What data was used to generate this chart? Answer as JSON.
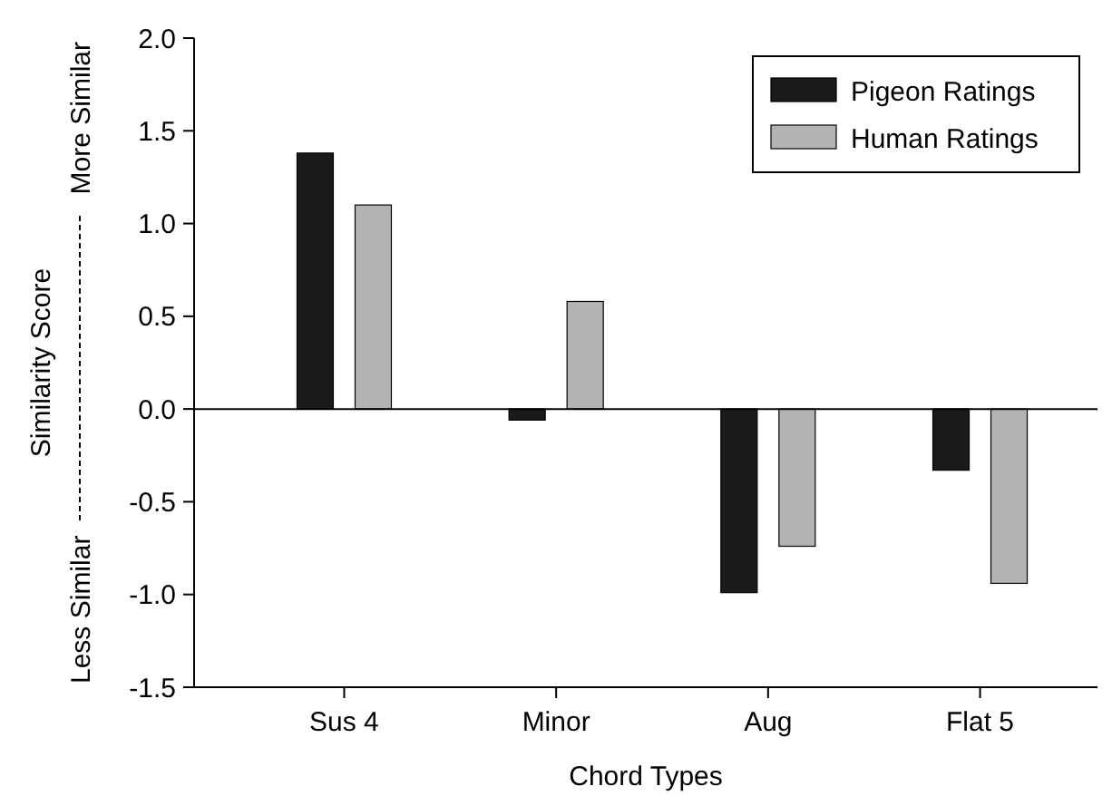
{
  "chart_data": {
    "type": "bar",
    "xlabel": "Chord Types",
    "annotations": [
      "Similarity Score",
      "Less Similar",
      "More Similar"
    ],
    "categories": [
      "Sus 4",
      "Minor",
      "Aug",
      "Flat 5"
    ],
    "series": [
      {
        "name": "Pigeon Ratings",
        "color": "#1a1a1a",
        "values": [
          1.38,
          -0.06,
          -0.99,
          -0.33
        ]
      },
      {
        "name": "Human Ratings",
        "color": "#b3b3b3",
        "values": [
          1.1,
          0.58,
          -0.74,
          -0.94
        ]
      }
    ],
    "ylim": [
      -1.5,
      2.0
    ],
    "yticks": [
      {
        "value": -1.5,
        "label": "-1.5"
      },
      {
        "value": -1,
        "label": "-1.0"
      },
      {
        "value": -0.5,
        "label": "-0.5"
      },
      {
        "value": 0,
        "label": "0.0"
      },
      {
        "value": 0.5,
        "label": "0.5"
      },
      {
        "value": 1,
        "label": "1.0"
      },
      {
        "value": 1.5,
        "label": "1.5"
      },
      {
        "value": 2,
        "label": "2.0"
      }
    ],
    "ref_lines": [
      {
        "axis": "y",
        "value": 0
      }
    ],
    "legend": "top right"
  }
}
